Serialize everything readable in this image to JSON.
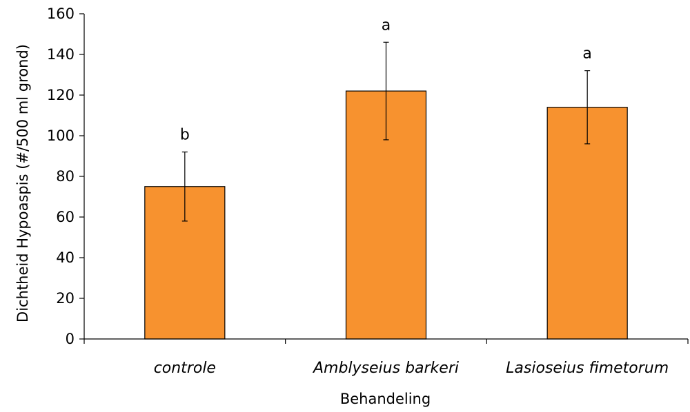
{
  "chart_data": {
    "type": "bar",
    "categories": [
      "controle",
      "Amblyseius barkeri",
      "Lasioseius fimetorum"
    ],
    "values": [
      75,
      122,
      114
    ],
    "errors": [
      17,
      24,
      18
    ],
    "significance": [
      "b",
      "a",
      "a"
    ],
    "xlabel": "Behandeling",
    "ylabel": "Dichtheid Hypoaspis (#/500 ml grond)",
    "ylim": [
      0,
      160
    ],
    "yticks": [
      0,
      20,
      40,
      60,
      80,
      100,
      120,
      140,
      160
    ],
    "grid": false,
    "legend": "none",
    "bar_color": "#f7922f"
  }
}
